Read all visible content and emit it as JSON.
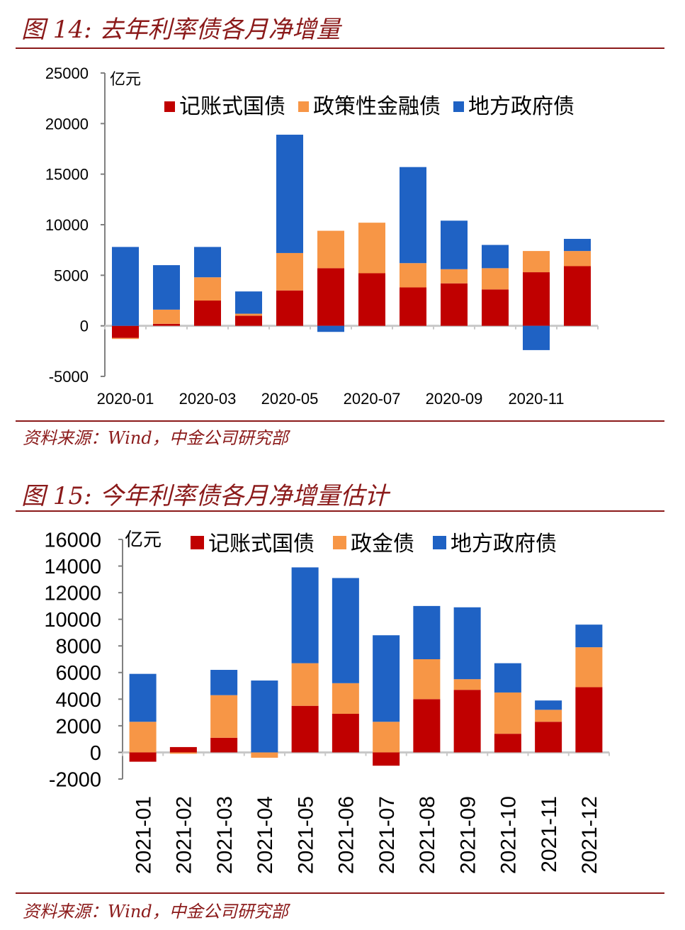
{
  "figure14": {
    "title": "图 14:  去年利率债各月净增量",
    "source": "资料来源：Wind，中金公司研究部"
  },
  "figure15": {
    "title": "图 15:  今年利率债各月净增量估计",
    "source": "资料来源：Wind，中金公司研究部"
  },
  "colors": {
    "treasury": "#c00000",
    "policy_bank": "#f79646",
    "local_gov": "#1f62c4"
  },
  "chart_data": [
    {
      "type": "bar",
      "stacked": true,
      "unit_label": "亿元",
      "categories": [
        "2020-01",
        "2020-02",
        "2020-03",
        "2020-04",
        "2020-05",
        "2020-06",
        "2020-07",
        "2020-08",
        "2020-09",
        "2020-10",
        "2020-11",
        "2020-12"
      ],
      "tick_labels": [
        "2020-01",
        "2020-03",
        "2020-05",
        "2020-07",
        "2020-09",
        "2020-11"
      ],
      "ylim": [
        -5000,
        25000
      ],
      "yticks": [
        -5000,
        0,
        5000,
        10000,
        15000,
        20000,
        25000
      ],
      "legend": "top",
      "series": [
        {
          "name": "记账式国债",
          "values": [
            -1200,
            200,
            2500,
            1000,
            3500,
            5700,
            5200,
            3800,
            4200,
            3600,
            5300,
            5900
          ]
        },
        {
          "name": "政策性金融债",
          "values": [
            -100,
            1400,
            2300,
            200,
            3700,
            3700,
            5000,
            2400,
            1400,
            2100,
            2100,
            1500
          ]
        },
        {
          "name": "地方政府债",
          "values": [
            7800,
            4400,
            3000,
            2200,
            11700,
            -600,
            0,
            9500,
            4800,
            2300,
            -2400,
            1200
          ]
        }
      ]
    },
    {
      "type": "bar",
      "stacked": true,
      "unit_label": "亿元",
      "categories": [
        "2021-01",
        "2021-02",
        "2021-03",
        "2021-04",
        "2021-05",
        "2021-06",
        "2021-07",
        "2021-08",
        "2021-09",
        "2021-10",
        "2021-11",
        "2021-12"
      ],
      "ylim": [
        -2000,
        16000
      ],
      "yticks": [
        -2000,
        0,
        2000,
        4000,
        6000,
        8000,
        10000,
        12000,
        14000,
        16000
      ],
      "legend": "top",
      "series": [
        {
          "name": "记账式国债",
          "values": [
            -700,
            400,
            1100,
            0,
            3500,
            2900,
            -1000,
            4000,
            4700,
            1400,
            2300,
            4900
          ]
        },
        {
          "name": "政金债",
          "values": [
            2300,
            -100,
            3200,
            -400,
            3200,
            2300,
            2300,
            3000,
            800,
            3100,
            900,
            3000
          ]
        },
        {
          "name": "地方政府债",
          "values": [
            3600,
            0,
            1900,
            5400,
            7200,
            7900,
            6500,
            4000,
            5400,
            2200,
            700,
            1700
          ]
        }
      ]
    }
  ]
}
